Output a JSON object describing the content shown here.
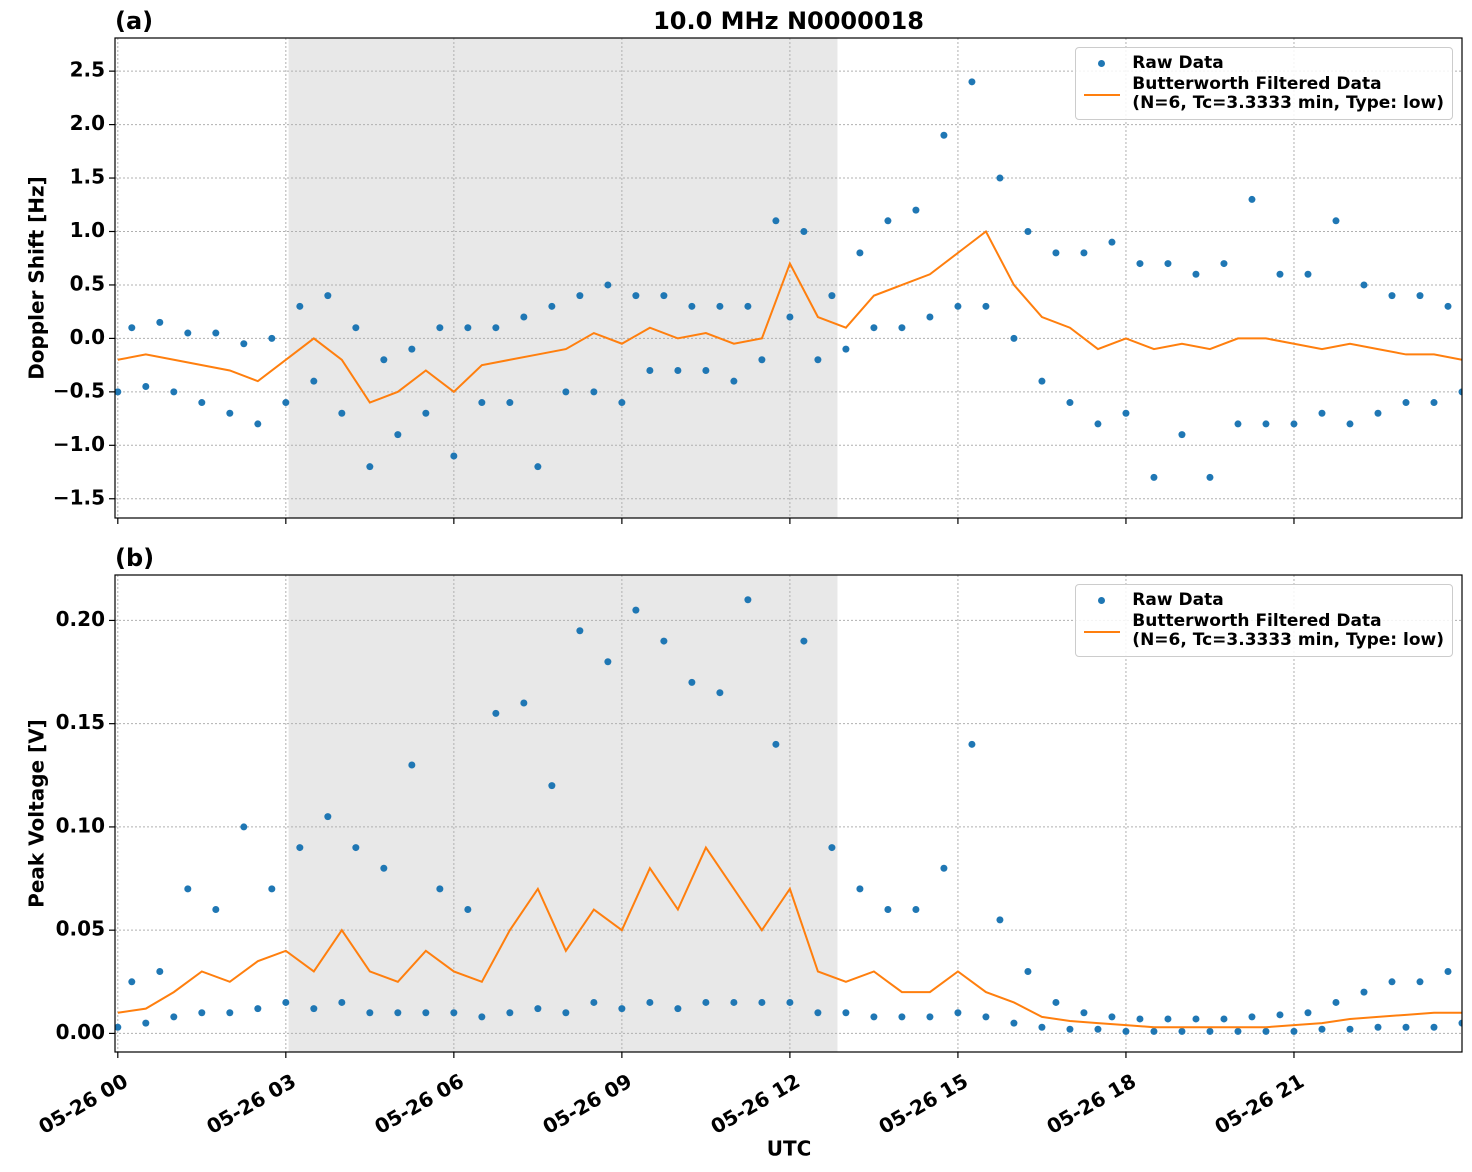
{
  "chart_data": [
    {
      "type": "scatter-line",
      "title": "10.0 MHz N0000018",
      "panel_label": "(a)",
      "ylabel": "Doppler Shift [Hz]",
      "xlim": [
        -0.05,
        24
      ],
      "ylim": [
        -1.68,
        2.81
      ],
      "shade": [
        3.05,
        12.85
      ],
      "grid": true,
      "legend": "upper right",
      "yticks": [
        {
          "value": -1.5,
          "label": "−1.5"
        },
        {
          "value": -1,
          "label": "−1.0"
        },
        {
          "value": -0.5,
          "label": "−0.5"
        },
        {
          "value": 0,
          "label": "0.0"
        },
        0.5,
        {
          "value": 1,
          "label": "1.0"
        },
        1.5,
        {
          "value": 2,
          "label": "2.0"
        },
        2.5
      ],
      "series": [
        {
          "name": "Raw Data",
          "color": "#1f77b4",
          "kind": "points",
          "x": [
            0,
            0.25,
            0.5,
            0.75,
            1,
            1.25,
            1.5,
            1.75,
            2,
            2.25,
            2.5,
            2.75,
            3,
            3.25,
            3.5,
            3.75,
            4,
            4.25,
            4.5,
            4.75,
            5,
            5.25,
            5.5,
            5.75,
            6,
            6.25,
            6.5,
            6.75,
            7,
            7.25,
            7.5,
            7.75,
            8,
            8.25,
            8.5,
            8.75,
            9,
            9.25,
            9.5,
            9.75,
            10,
            10.25,
            10.5,
            10.75,
            11,
            11.25,
            11.5,
            11.75,
            12,
            12.25,
            12.5,
            12.75,
            13,
            13.25,
            13.5,
            13.75,
            14,
            14.25,
            14.5,
            14.75,
            15,
            15.25,
            15.5,
            15.75,
            16,
            16.25,
            16.5,
            16.75,
            17,
            17.25,
            17.5,
            17.75,
            18,
            18.25,
            18.5,
            18.75,
            19,
            19.25,
            19.5,
            19.75,
            20,
            20.25,
            20.5,
            20.75,
            21,
            21.25,
            21.5,
            21.75,
            22,
            22.25,
            22.5,
            22.75,
            23,
            23.25,
            23.5,
            23.75,
            24
          ],
          "values": [
            -0.5,
            0.1,
            -0.45,
            0.15,
            -0.5,
            0.05,
            -0.6,
            0.05,
            -0.7,
            -0.05,
            -0.8,
            0,
            -0.6,
            0.3,
            -0.4,
            0.4,
            -0.7,
            0.1,
            -1.2,
            -0.2,
            -0.9,
            -0.1,
            -0.7,
            0.1,
            -1.1,
            0.1,
            -0.6,
            0.1,
            -0.6,
            0.2,
            -1.2,
            0.3,
            -0.5,
            0.4,
            -0.5,
            0.5,
            -0.6,
            0.4,
            -0.3,
            0.4,
            -0.3,
            0.3,
            -0.3,
            0.3,
            -0.4,
            0.3,
            -0.2,
            1.1,
            0.2,
            1,
            -0.2,
            0.4,
            -0.1,
            0.8,
            0.1,
            1.1,
            0.1,
            1.2,
            0.2,
            1.9,
            0.3,
            2.4,
            0.3,
            1.5,
            0,
            1,
            -0.4,
            0.8,
            -0.6,
            0.8,
            -0.8,
            0.9,
            -0.7,
            0.7,
            -1.3,
            0.7,
            -0.9,
            0.6,
            -1.3,
            0.7,
            -0.8,
            1.3,
            -0.8,
            0.6,
            -0.8,
            0.6,
            -0.7,
            1.1,
            -0.8,
            0.5,
            -0.7,
            0.4,
            -0.6,
            0.4,
            -0.6,
            0.3,
            -0.5
          ]
        },
        {
          "name": "Butterworth Filtered Data\n(N=6, Tc=3.3333 min, Type: low)",
          "color": "#ff7f0e",
          "kind": "line",
          "x": [
            0,
            0.5,
            1,
            1.5,
            2,
            2.5,
            3,
            3.5,
            4,
            4.5,
            5,
            5.5,
            6,
            6.5,
            7,
            7.5,
            8,
            8.5,
            9,
            9.5,
            10,
            10.5,
            11,
            11.5,
            12,
            12.5,
            13,
            13.5,
            14,
            14.5,
            15,
            15.5,
            16,
            16.5,
            17,
            17.5,
            18,
            18.5,
            19,
            19.5,
            20,
            20.5,
            21,
            21.5,
            22,
            22.5,
            23,
            23.5,
            24
          ],
          "values": [
            -0.2,
            -0.15,
            -0.2,
            -0.25,
            -0.3,
            -0.4,
            -0.2,
            0,
            -0.2,
            -0.6,
            -0.5,
            -0.3,
            -0.5,
            -0.25,
            -0.2,
            -0.15,
            -0.1,
            0.05,
            -0.05,
            0.1,
            0,
            0.05,
            -0.05,
            0,
            0.7,
            0.2,
            0.1,
            0.4,
            0.5,
            0.6,
            0.8,
            1,
            0.5,
            0.2,
            0.1,
            -0.1,
            0,
            -0.1,
            -0.05,
            -0.1,
            0,
            0,
            -0.05,
            -0.1,
            -0.05,
            -0.1,
            -0.15,
            -0.15,
            -0.2
          ]
        }
      ]
    },
    {
      "type": "scatter-line",
      "panel_label": "(b)",
      "ylabel": "Peak Voltage [V]",
      "xlabel": "UTC",
      "xlim": [
        -0.05,
        24
      ],
      "ylim": [
        -0.009,
        0.222
      ],
      "shade": [
        3.05,
        12.85
      ],
      "grid": true,
      "legend": "upper right",
      "xticks": [
        {
          "value": 0,
          "label": "05-26 00"
        },
        {
          "value": 3,
          "label": "05-26 03"
        },
        {
          "value": 6,
          "label": "05-26 06"
        },
        {
          "value": 9,
          "label": "05-26 09"
        },
        {
          "value": 12,
          "label": "05-26 12"
        },
        {
          "value": 15,
          "label": "05-26 15"
        },
        {
          "value": 18,
          "label": "05-26 18"
        },
        {
          "value": 21,
          "label": "05-26 21"
        }
      ],
      "yticks": [
        {
          "value": 0,
          "label": "0.00"
        },
        0.05,
        {
          "value": 0.1,
          "label": "0.10"
        },
        0.15,
        {
          "value": 0.2,
          "label": "0.20"
        }
      ],
      "series": [
        {
          "name": "Raw Data",
          "color": "#1f77b4",
          "kind": "points",
          "x": [
            0,
            0.25,
            0.5,
            0.75,
            1,
            1.25,
            1.5,
            1.75,
            2,
            2.25,
            2.5,
            2.75,
            3,
            3.25,
            3.5,
            3.75,
            4,
            4.25,
            4.5,
            4.75,
            5,
            5.25,
            5.5,
            5.75,
            6,
            6.25,
            6.5,
            6.75,
            7,
            7.25,
            7.5,
            7.75,
            8,
            8.25,
            8.5,
            8.75,
            9,
            9.25,
            9.5,
            9.75,
            10,
            10.25,
            10.5,
            10.75,
            11,
            11.25,
            11.5,
            11.75,
            12,
            12.25,
            12.5,
            12.75,
            13,
            13.25,
            13.5,
            13.75,
            14,
            14.25,
            14.5,
            14.75,
            15,
            15.25,
            15.5,
            15.75,
            16,
            16.25,
            16.5,
            16.75,
            17,
            17.25,
            17.5,
            17.75,
            18,
            18.25,
            18.5,
            18.75,
            19,
            19.25,
            19.5,
            19.75,
            20,
            20.25,
            20.5,
            20.75,
            21,
            21.25,
            21.5,
            21.75,
            22,
            22.25,
            22.5,
            22.75,
            23,
            23.25,
            23.5,
            23.75,
            24
          ],
          "values": [
            0.003,
            0.025,
            0.005,
            0.03,
            0.008,
            0.07,
            0.01,
            0.06,
            0.01,
            0.1,
            0.012,
            0.07,
            0.015,
            0.09,
            0.012,
            0.105,
            0.015,
            0.09,
            0.01,
            0.08,
            0.01,
            0.13,
            0.01,
            0.07,
            0.01,
            0.06,
            0.008,
            0.155,
            0.01,
            0.16,
            0.012,
            0.12,
            0.01,
            0.195,
            0.015,
            0.18,
            0.012,
            0.205,
            0.015,
            0.19,
            0.012,
            0.17,
            0.015,
            0.165,
            0.015,
            0.21,
            0.015,
            0.14,
            0.015,
            0.19,
            0.01,
            0.09,
            0.01,
            0.07,
            0.008,
            0.06,
            0.008,
            0.06,
            0.008,
            0.08,
            0.01,
            0.14,
            0.008,
            0.055,
            0.005,
            0.03,
            0.003,
            0.015,
            0.002,
            0.01,
            0.002,
            0.008,
            0.001,
            0.007,
            0.001,
            0.007,
            0.001,
            0.007,
            0.001,
            0.007,
            0.001,
            0.008,
            0.001,
            0.009,
            0.001,
            0.01,
            0.002,
            0.015,
            0.002,
            0.02,
            0.003,
            0.025,
            0.003,
            0.025,
            0.003,
            0.03,
            0.005
          ]
        },
        {
          "name": "Butterworth Filtered Data\n(N=6, Tc=3.3333 min, Type: low)",
          "color": "#ff7f0e",
          "kind": "line",
          "x": [
            0,
            0.5,
            1,
            1.5,
            2,
            2.5,
            3,
            3.5,
            4,
            4.5,
            5,
            5.5,
            6,
            6.5,
            7,
            7.5,
            8,
            8.5,
            9,
            9.5,
            10,
            10.5,
            11,
            11.5,
            12,
            12.5,
            13,
            13.5,
            14,
            14.5,
            15,
            15.5,
            16,
            16.5,
            17,
            17.5,
            18,
            18.5,
            19,
            19.5,
            20,
            20.5,
            21,
            21.5,
            22,
            22.5,
            23,
            23.5,
            24
          ],
          "values": [
            0.01,
            0.012,
            0.02,
            0.03,
            0.025,
            0.035,
            0.04,
            0.03,
            0.05,
            0.03,
            0.025,
            0.04,
            0.03,
            0.025,
            0.05,
            0.07,
            0.04,
            0.06,
            0.05,
            0.08,
            0.06,
            0.09,
            0.07,
            0.05,
            0.07,
            0.03,
            0.025,
            0.03,
            0.02,
            0.02,
            0.03,
            0.02,
            0.015,
            0.008,
            0.006,
            0.005,
            0.004,
            0.003,
            0.003,
            0.003,
            0.003,
            0.003,
            0.004,
            0.005,
            0.007,
            0.008,
            0.009,
            0.01,
            0.01
          ]
        }
      ]
    }
  ]
}
